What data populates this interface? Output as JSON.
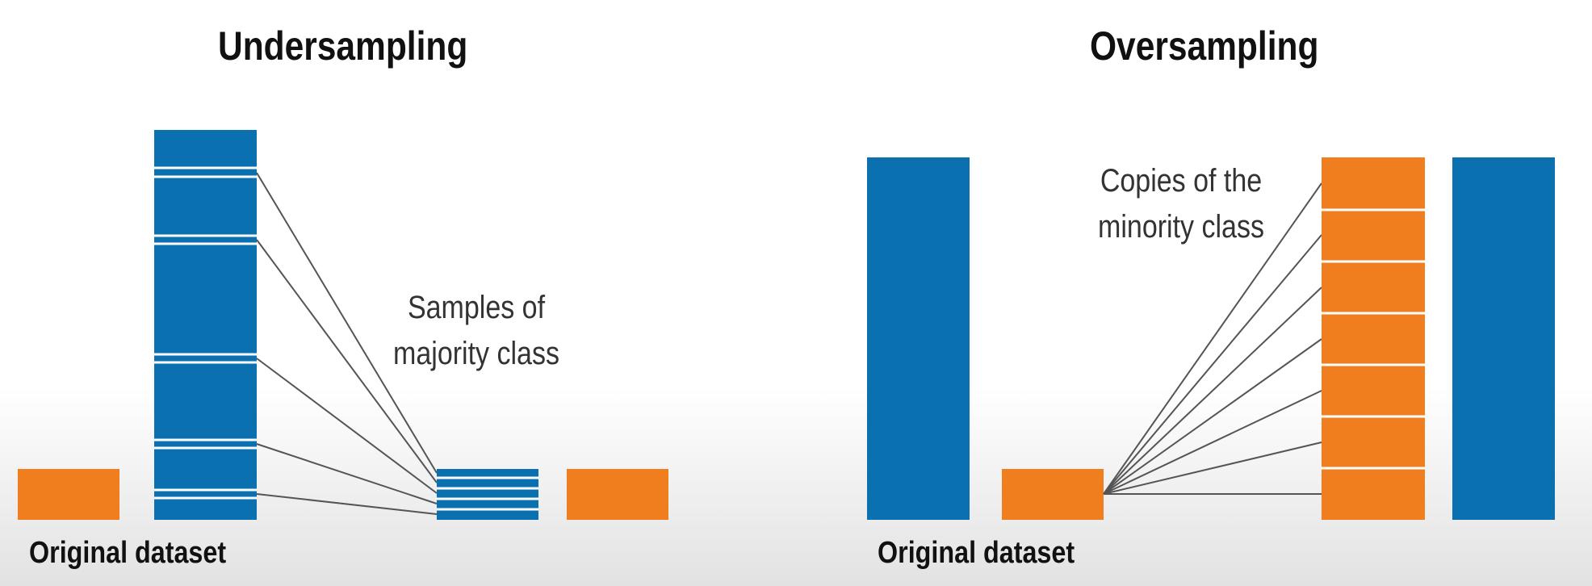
{
  "colors": {
    "majority": "#0a70b0",
    "minority": "#f07e1e",
    "connector": "#555555"
  },
  "undersampling": {
    "title": "Undersampling",
    "note": [
      "Samples of",
      "majority class"
    ],
    "caption": "Original dataset"
  },
  "oversampling": {
    "title": "Oversampling",
    "note": [
      "Copies of the",
      "minority class"
    ],
    "caption": "Original dataset"
  }
}
